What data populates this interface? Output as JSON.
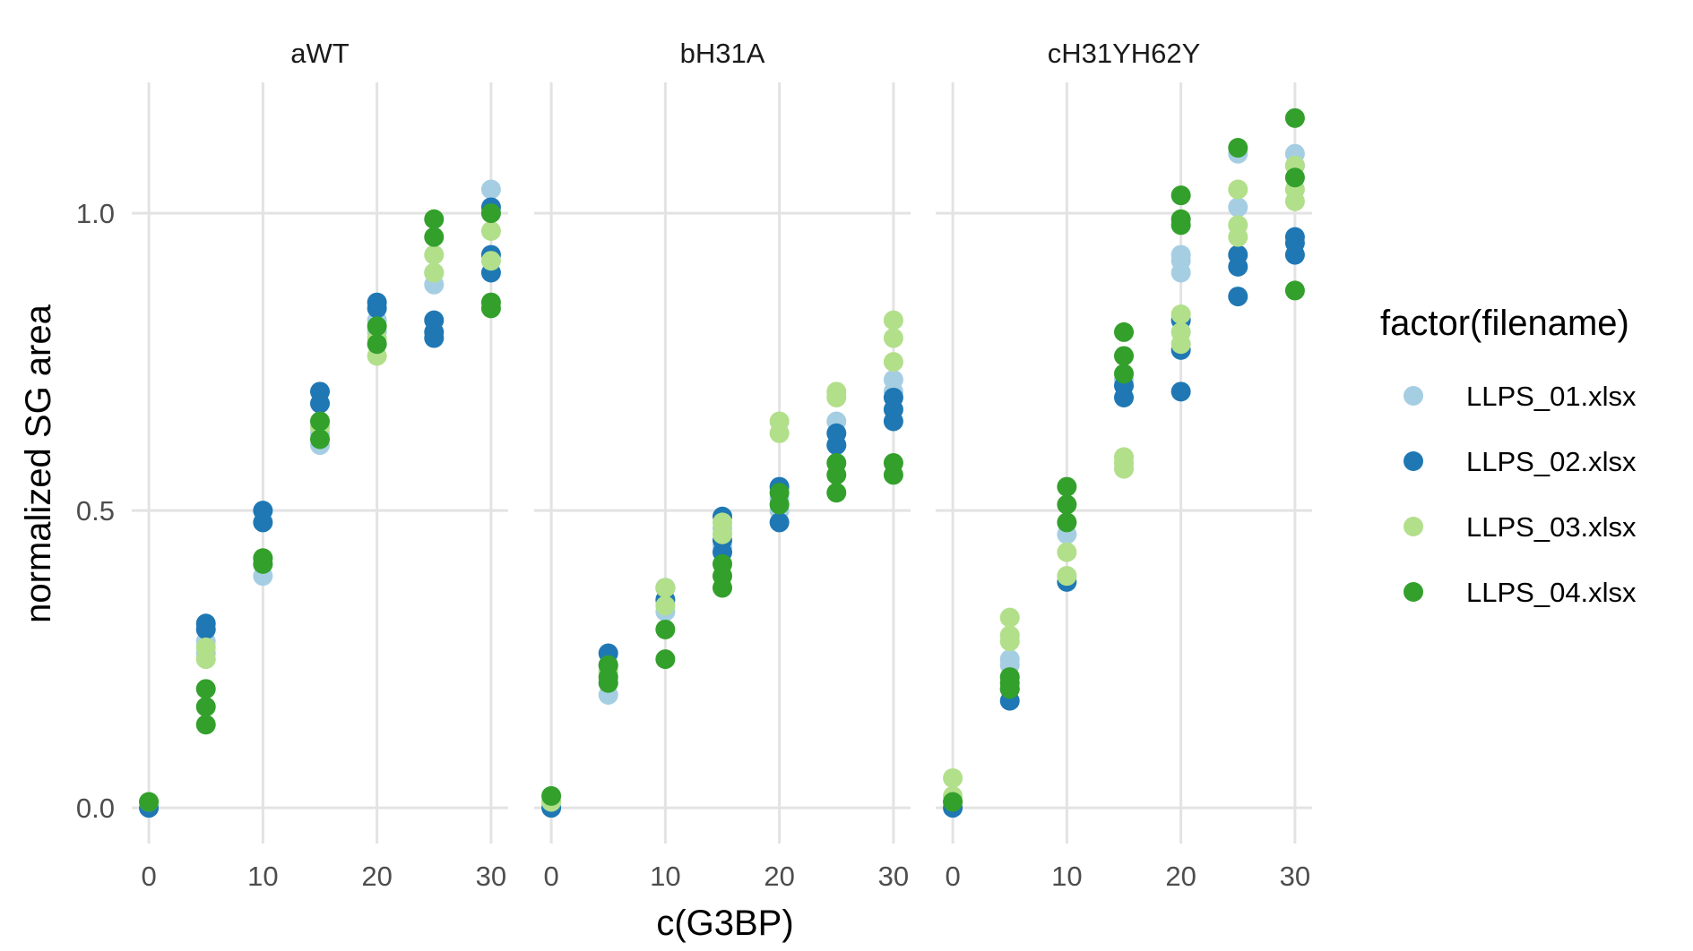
{
  "chart_data": {
    "type": "scatter",
    "xlabel": "c(G3BP)",
    "ylabel": "normalized SG area",
    "xlim": [
      -1.5,
      31.5
    ],
    "ylim": [
      -0.06,
      1.22
    ],
    "x_ticks": [
      0,
      10,
      20,
      30
    ],
    "y_ticks": [
      0.0,
      0.5,
      1.0
    ],
    "y_tick_labels": [
      "0.0",
      "0.5",
      "1.0"
    ],
    "grid": true,
    "legend": {
      "title": "factor(filename)",
      "position": "right",
      "entries": [
        "LLPS_01.xlsx",
        "LLPS_02.xlsx",
        "LLPS_03.xlsx",
        "LLPS_04.xlsx"
      ]
    },
    "series_colors": {
      "LLPS_01.xlsx": "#a6cee3",
      "LLPS_02.xlsx": "#1f78b4",
      "LLPS_03.xlsx": "#b2df8a",
      "LLPS_04.xlsx": "#33a02c"
    },
    "panels": [
      {
        "title": "aWT",
        "series": [
          {
            "name": "LLPS_01.xlsx",
            "points": [
              [
                0,
                0.0
              ],
              [
                0,
                0.01
              ],
              [
                5,
                0.26
              ],
              [
                5,
                0.28
              ],
              [
                10,
                0.39
              ],
              [
                10,
                0.41
              ],
              [
                15,
                0.61
              ],
              [
                15,
                0.63
              ],
              [
                20,
                0.8
              ],
              [
                20,
                0.82
              ],
              [
                25,
                0.88
              ],
              [
                25,
                0.9
              ],
              [
                30,
                1.04
              ],
              [
                30,
                1.0
              ]
            ]
          },
          {
            "name": "LLPS_02.xlsx",
            "points": [
              [
                0,
                0.0
              ],
              [
                5,
                0.31
              ],
              [
                5,
                0.3
              ],
              [
                10,
                0.5
              ],
              [
                10,
                0.48
              ],
              [
                15,
                0.7
              ],
              [
                15,
                0.68
              ],
              [
                20,
                0.85
              ],
              [
                20,
                0.84
              ],
              [
                25,
                0.82
              ],
              [
                25,
                0.8
              ],
              [
                25,
                0.79
              ],
              [
                30,
                1.01
              ],
              [
                30,
                0.93
              ],
              [
                30,
                0.9
              ]
            ]
          },
          {
            "name": "LLPS_03.xlsx",
            "points": [
              [
                0,
                0.01
              ],
              [
                5,
                0.27
              ],
              [
                5,
                0.25
              ],
              [
                10,
                0.42
              ],
              [
                15,
                0.64
              ],
              [
                20,
                0.76
              ],
              [
                20,
                0.79
              ],
              [
                25,
                0.93
              ],
              [
                25,
                0.9
              ],
              [
                30,
                0.97
              ],
              [
                30,
                0.92
              ]
            ]
          },
          {
            "name": "LLPS_04.xlsx",
            "points": [
              [
                0,
                0.01
              ],
              [
                5,
                0.2
              ],
              [
                5,
                0.17
              ],
              [
                5,
                0.14
              ],
              [
                10,
                0.42
              ],
              [
                10,
                0.41
              ],
              [
                15,
                0.65
              ],
              [
                15,
                0.62
              ],
              [
                20,
                0.81
              ],
              [
                20,
                0.78
              ],
              [
                25,
                0.99
              ],
              [
                25,
                0.96
              ],
              [
                30,
                1.0
              ],
              [
                30,
                0.85
              ],
              [
                30,
                0.84
              ]
            ]
          }
        ]
      },
      {
        "title": "bH31A",
        "series": [
          {
            "name": "LLPS_01.xlsx",
            "points": [
              [
                0,
                0.01
              ],
              [
                5,
                0.19
              ],
              [
                5,
                0.21
              ],
              [
                10,
                0.33
              ],
              [
                10,
                0.35
              ],
              [
                15,
                0.44
              ],
              [
                15,
                0.47
              ],
              [
                20,
                0.52
              ],
              [
                20,
                0.5
              ],
              [
                25,
                0.65
              ],
              [
                25,
                0.61
              ],
              [
                30,
                0.72
              ],
              [
                30,
                0.7
              ]
            ]
          },
          {
            "name": "LLPS_02.xlsx",
            "points": [
              [
                0,
                0.0
              ],
              [
                5,
                0.26
              ],
              [
                5,
                0.24
              ],
              [
                10,
                0.37
              ],
              [
                10,
                0.35
              ],
              [
                15,
                0.49
              ],
              [
                15,
                0.45
              ],
              [
                15,
                0.43
              ],
              [
                20,
                0.54
              ],
              [
                20,
                0.48
              ],
              [
                25,
                0.63
              ],
              [
                25,
                0.61
              ],
              [
                30,
                0.69
              ],
              [
                30,
                0.67
              ],
              [
                30,
                0.65
              ]
            ]
          },
          {
            "name": "LLPS_03.xlsx",
            "points": [
              [
                0,
                0.01
              ],
              [
                5,
                0.23
              ],
              [
                10,
                0.37
              ],
              [
                10,
                0.34
              ],
              [
                15,
                0.48
              ],
              [
                15,
                0.46
              ],
              [
                20,
                0.65
              ],
              [
                20,
                0.63
              ],
              [
                25,
                0.7
              ],
              [
                25,
                0.69
              ],
              [
                30,
                0.82
              ],
              [
                30,
                0.79
              ],
              [
                30,
                0.75
              ]
            ]
          },
          {
            "name": "LLPS_04.xlsx",
            "points": [
              [
                0,
                0.02
              ],
              [
                5,
                0.24
              ],
              [
                5,
                0.22
              ],
              [
                5,
                0.21
              ],
              [
                10,
                0.3
              ],
              [
                10,
                0.25
              ],
              [
                15,
                0.41
              ],
              [
                15,
                0.39
              ],
              [
                15,
                0.37
              ],
              [
                20,
                0.53
              ],
              [
                20,
                0.51
              ],
              [
                25,
                0.58
              ],
              [
                25,
                0.56
              ],
              [
                25,
                0.53
              ],
              [
                30,
                0.58
              ],
              [
                30,
                0.56
              ]
            ]
          }
        ]
      },
      {
        "title": "cH31YH62Y",
        "series": [
          {
            "name": "LLPS_01.xlsx",
            "points": [
              [
                0,
                0.01
              ],
              [
                5,
                0.25
              ],
              [
                5,
                0.24
              ],
              [
                10,
                0.46
              ],
              [
                10,
                0.39
              ],
              [
                15,
                0.72
              ],
              [
                20,
                0.93
              ],
              [
                20,
                0.92
              ],
              [
                20,
                0.9
              ],
              [
                25,
                1.1
              ],
              [
                25,
                1.01
              ],
              [
                30,
                1.1
              ],
              [
                30,
                1.08
              ]
            ]
          },
          {
            "name": "LLPS_02.xlsx",
            "points": [
              [
                0,
                0.0
              ],
              [
                5,
                0.18
              ],
              [
                5,
                0.2
              ],
              [
                10,
                0.38
              ],
              [
                15,
                0.71
              ],
              [
                15,
                0.69
              ],
              [
                20,
                0.82
              ],
              [
                20,
                0.77
              ],
              [
                20,
                0.7
              ],
              [
                25,
                0.93
              ],
              [
                25,
                0.91
              ],
              [
                25,
                0.86
              ],
              [
                30,
                0.96
              ],
              [
                30,
                0.95
              ],
              [
                30,
                0.93
              ]
            ]
          },
          {
            "name": "LLPS_03.xlsx",
            "points": [
              [
                0,
                0.05
              ],
              [
                0,
                0.02
              ],
              [
                5,
                0.32
              ],
              [
                5,
                0.29
              ],
              [
                5,
                0.28
              ],
              [
                10,
                0.43
              ],
              [
                10,
                0.39
              ],
              [
                15,
                0.59
              ],
              [
                15,
                0.58
              ],
              [
                15,
                0.57
              ],
              [
                20,
                0.83
              ],
              [
                20,
                0.8
              ],
              [
                20,
                0.78
              ],
              [
                25,
                1.04
              ],
              [
                25,
                0.98
              ],
              [
                25,
                0.96
              ],
              [
                30,
                1.08
              ],
              [
                30,
                1.04
              ],
              [
                30,
                1.02
              ]
            ]
          },
          {
            "name": "LLPS_04.xlsx",
            "points": [
              [
                0,
                0.01
              ],
              [
                5,
                0.22
              ],
              [
                5,
                0.21
              ],
              [
                5,
                0.2
              ],
              [
                10,
                0.54
              ],
              [
                10,
                0.51
              ],
              [
                10,
                0.48
              ],
              [
                15,
                0.8
              ],
              [
                15,
                0.76
              ],
              [
                15,
                0.73
              ],
              [
                20,
                1.03
              ],
              [
                20,
                0.99
              ],
              [
                20,
                0.98
              ],
              [
                25,
                1.11
              ],
              [
                30,
                1.16
              ],
              [
                30,
                1.06
              ],
              [
                30,
                0.87
              ]
            ]
          }
        ]
      }
    ]
  }
}
